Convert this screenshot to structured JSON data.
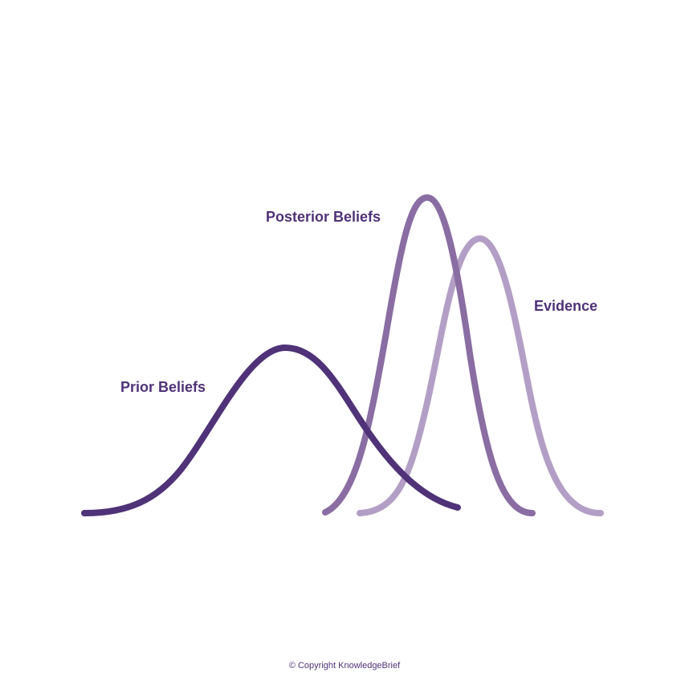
{
  "labels": {
    "prior": "Prior Beliefs",
    "posterior": "Posterior Beliefs",
    "evidence": "Evidence"
  },
  "footer": {
    "copyright": "© Copyright KnowledgeBrief"
  },
  "colors": {
    "prior": "#4f3277",
    "posterior": "#8a6da2",
    "evidence": "#b39fc5",
    "label_text": "#4f3277",
    "footer_text": "#4f3277"
  }
}
